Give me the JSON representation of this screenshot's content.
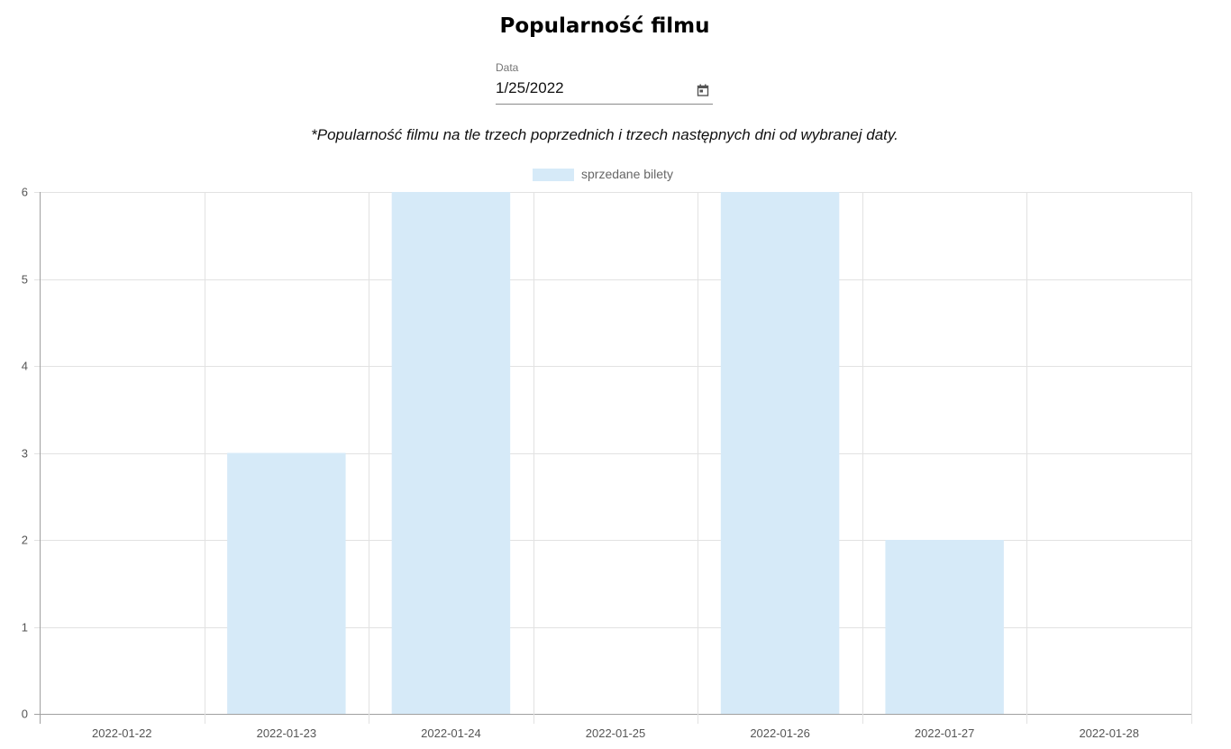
{
  "page": {
    "title": "Popularność filmu",
    "note": "*Popularność filmu na tle trzech poprzednich i trzech następnych dni od wybranej daty."
  },
  "date_input": {
    "label": "Data",
    "value": "1/25/2022"
  },
  "chart_data": {
    "type": "bar",
    "categories": [
      "2022-01-22",
      "2022-01-23",
      "2022-01-24",
      "2022-01-25",
      "2022-01-26",
      "2022-01-27",
      "2022-01-28"
    ],
    "series": [
      {
        "name": "sprzedane bilety",
        "values": [
          0,
          3,
          6,
          0,
          6,
          2,
          0
        ],
        "color": "#d6eaf8"
      }
    ],
    "ylim": [
      0,
      6
    ],
    "yticks": [
      "0",
      "1",
      "2",
      "3",
      "4",
      "5",
      "6"
    ],
    "grid": true,
    "legend": "top-center"
  }
}
